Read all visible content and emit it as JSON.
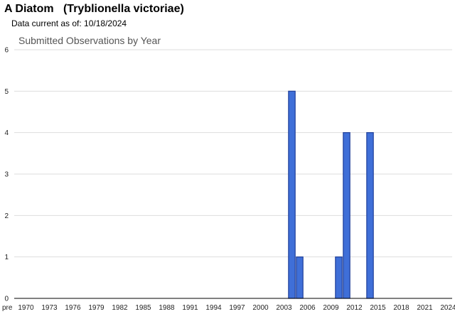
{
  "header": {
    "title": "A Diatom   (Tryblionella victoriae)",
    "date_note": "Data current as of: 10/18/2024"
  },
  "chart_data": {
    "type": "bar",
    "title": "Submitted Observations by Year",
    "xlabel": "",
    "ylabel": "",
    "categories": [
      "pre",
      "1970",
      "1971",
      "1972",
      "1973",
      "1974",
      "1975",
      "1976",
      "1977",
      "1978",
      "1979",
      "1980",
      "1981",
      "1982",
      "1983",
      "1984",
      "1985",
      "1986",
      "1987",
      "1988",
      "1989",
      "1990",
      "1991",
      "1992",
      "1993",
      "1994",
      "1995",
      "1996",
      "1997",
      "1998",
      "1999",
      "2000",
      "2001",
      "2002",
      "2003",
      "2004",
      "2005",
      "2006",
      "2007",
      "2008",
      "2009",
      "2010",
      "2011",
      "2012",
      "2013",
      "2014",
      "2015",
      "2016",
      "2017",
      "2018",
      "2019",
      "2020",
      "2021",
      "2022",
      "2023",
      "2024"
    ],
    "values": [
      0,
      0,
      0,
      0,
      0,
      0,
      0,
      0,
      0,
      0,
      0,
      0,
      0,
      0,
      0,
      0,
      0,
      0,
      0,
      0,
      0,
      0,
      0,
      0,
      0,
      0,
      0,
      0,
      0,
      0,
      0,
      0,
      0,
      0,
      0,
      5,
      1,
      0,
      0,
      0,
      0,
      1,
      4,
      0,
      0,
      4,
      0,
      0,
      0,
      0,
      0,
      0,
      0,
      0,
      0,
      0
    ],
    "x_tick_labels": [
      "pre",
      "1970",
      "1973",
      "1976",
      "1979",
      "1982",
      "1985",
      "1988",
      "1991",
      "1994",
      "1997",
      "2000",
      "2003",
      "2006",
      "2009",
      "2012",
      "2015",
      "2018",
      "2021",
      "2024"
    ],
    "y_ticks": [
      0,
      1,
      2,
      3,
      4,
      5,
      6
    ],
    "ylim": [
      0,
      6
    ],
    "grid": true,
    "bar_color": "#3f6fd8",
    "bar_edge_color": "#1f3f9a",
    "grid_color": "#dddddd"
  }
}
